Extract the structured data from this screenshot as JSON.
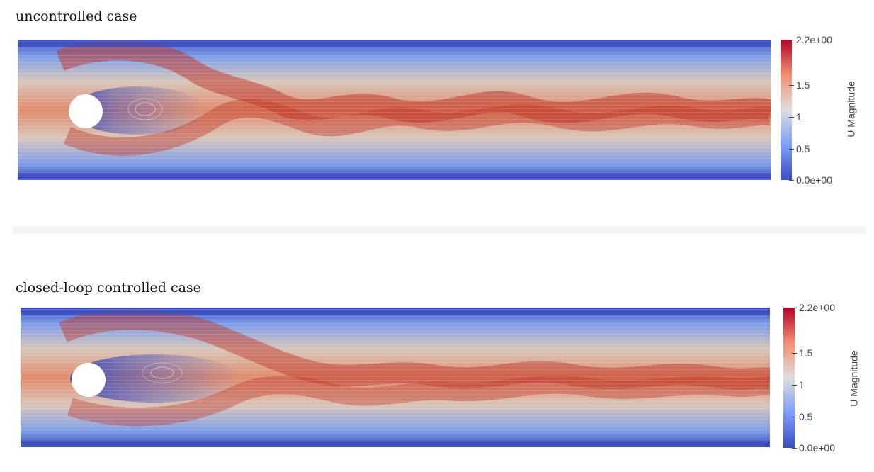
{
  "panels": [
    {
      "title": "uncontrolled case",
      "colorbar": {
        "label": "U Magnitude",
        "max_label": "2.2e+00",
        "min_label": "0.0e+00",
        "ticks": [
          "1.5",
          "1",
          "0.5"
        ],
        "range": [
          0,
          2.2
        ]
      }
    },
    {
      "title": "closed-loop controlled case",
      "colorbar": {
        "label": "U Magnitude",
        "max_label": "2.2e+00",
        "min_label": "0.0e+00",
        "ticks": [
          "1.5",
          "1",
          "0.5"
        ],
        "range": [
          0,
          2.2
        ]
      }
    }
  ],
  "colormap": {
    "low": "#3b4cc0",
    "mid": "#dddddd",
    "high": "#b40426"
  }
}
